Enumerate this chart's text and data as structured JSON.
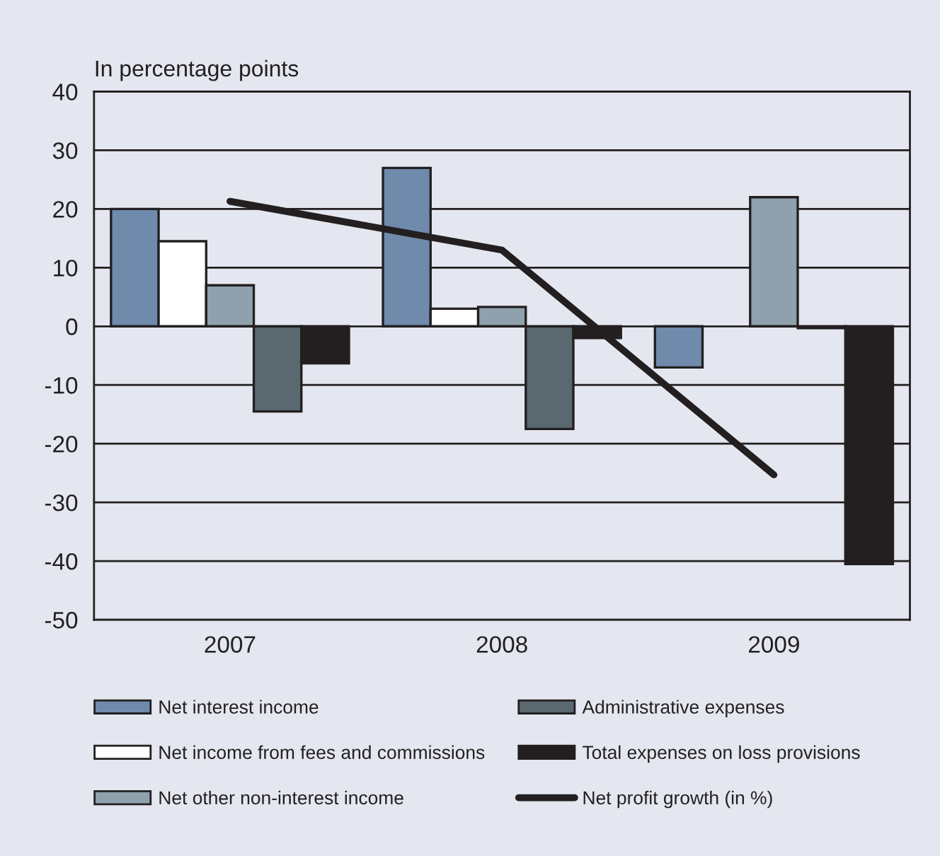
{
  "chart_data": {
    "type": "bar",
    "ylabel": "In percentage points",
    "categories": [
      "2007",
      "2008",
      "2009"
    ],
    "series": [
      {
        "name": "Net interest income",
        "color": "#6f8aab",
        "values": [
          20,
          27,
          -7
        ]
      },
      {
        "name": "Net income from fees and commissions",
        "color": "#ffffff",
        "values": [
          14.5,
          3,
          null
        ]
      },
      {
        "name": "Net other non-interest income",
        "color": "#8fa1ad",
        "values": [
          7,
          3.3,
          22
        ]
      },
      {
        "name": "Administrative expenses",
        "color": "#5a6870",
        "values": [
          -14.5,
          -17.5,
          -0.3
        ]
      },
      {
        "name": "Total expenses on loss provisions",
        "color": "#231f20",
        "values": [
          -6.3,
          -2,
          -40.5
        ]
      },
      {
        "name": "Net profit growth (in %)",
        "color": "#231f20",
        "type": "line",
        "values": [
          21.3,
          13,
          -25.3
        ]
      }
    ],
    "ylim": [
      -50,
      40
    ],
    "yticks": [
      -50,
      -40,
      -30,
      -20,
      -10,
      0,
      10,
      20,
      30,
      40
    ],
    "grid": "y",
    "legend": "bottom",
    "marker": "none",
    "line_style": "solid"
  }
}
